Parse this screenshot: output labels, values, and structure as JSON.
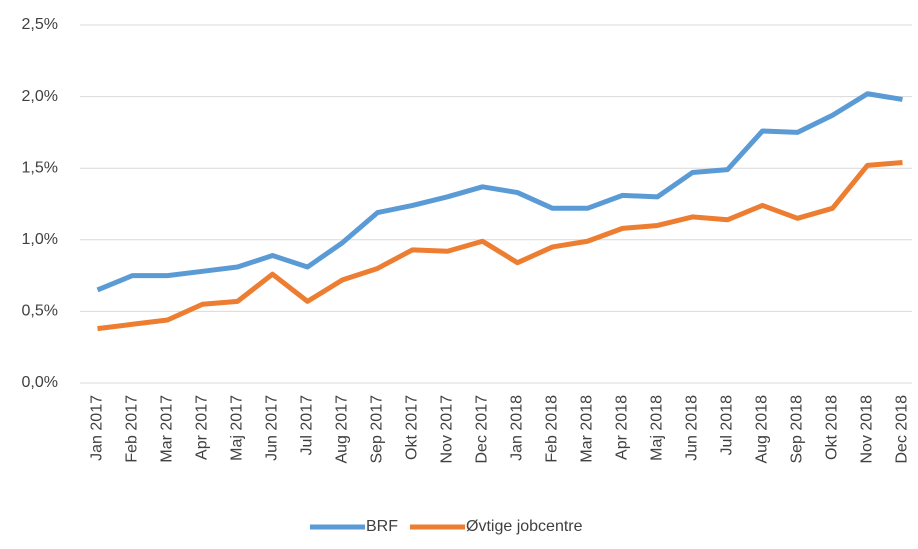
{
  "chart_data": {
    "type": "line",
    "categories": [
      "Jan 2017",
      "Feb 2017",
      "Mar 2017",
      "Apr 2017",
      "Maj 2017",
      "Jun 2017",
      "Jul 2017",
      "Aug 2017",
      "Sep 2017",
      "Okt 2017",
      "Nov 2017",
      "Dec 2017",
      "Jan 2018",
      "Feb 2018",
      "Mar 2018",
      "Apr 2018",
      "Maj 2018",
      "Jun 2018",
      "Jul 2018",
      "Aug 2018",
      "Sep 2018",
      "Okt 2018",
      "Nov 2018",
      "Dec 2018"
    ],
    "series": [
      {
        "name": "BRF",
        "color": "#5b9bd5",
        "values": [
          0.65,
          0.75,
          0.75,
          0.78,
          0.81,
          0.89,
          0.81,
          0.98,
          1.19,
          1.24,
          1.3,
          1.37,
          1.33,
          1.22,
          1.22,
          1.31,
          1.3,
          1.47,
          1.49,
          1.76,
          1.75,
          1.87,
          2.02,
          1.98
        ]
      },
      {
        "name": "Øvtige jobcentre",
        "color": "#ed7d31",
        "values": [
          0.38,
          0.41,
          0.44,
          0.55,
          0.57,
          0.76,
          0.57,
          0.72,
          0.8,
          0.93,
          0.92,
          0.99,
          0.84,
          0.95,
          0.99,
          1.08,
          1.1,
          1.16,
          1.14,
          1.24,
          1.15,
          1.22,
          1.52,
          1.54
        ]
      }
    ],
    "ylim": [
      0,
      2.5
    ],
    "yticks": [
      {
        "value": 0,
        "label": "0,0%"
      },
      {
        "value": 0.5,
        "label": "0,5%"
      },
      {
        "value": 1,
        "label": "1,0%"
      },
      {
        "value": 1.5,
        "label": "1,5%"
      },
      {
        "value": 2,
        "label": "2,0%"
      },
      {
        "value": 2.5,
        "label": "2,5%"
      }
    ],
    "grid": true,
    "legend": "bottom"
  }
}
